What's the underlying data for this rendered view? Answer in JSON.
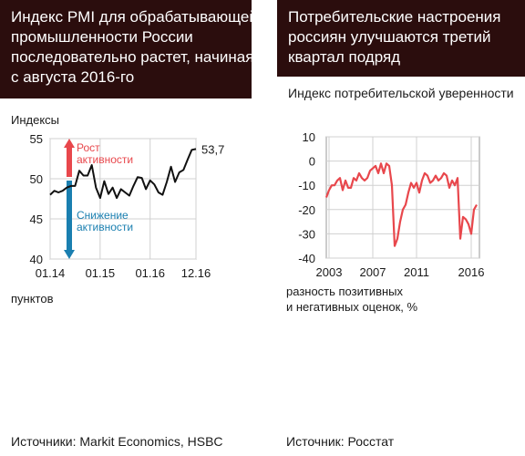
{
  "colors": {
    "header_bg": "#2b0d0d",
    "header_text": "#ffffff",
    "growth_arrow": "#e8474c",
    "decline_arrow": "#1a7fb0",
    "line_left": "#111111",
    "line_right": "#e8474c",
    "grid": "#d0d0d0"
  },
  "left": {
    "title_lines": [
      "Индекс PMI для обрабатывающей",
      "промышленности России",
      "последовательно растет, начиная",
      "с августа 2016-го"
    ],
    "source": "Источники: Markit Economics, HSBC"
  },
  "right": {
    "title_lines": [
      "Потребительские настроения",
      "россиян улучшаются третий",
      "квартал подряд"
    ],
    "source": "Источник: Росстат"
  },
  "chart_data": [
    {
      "type": "line",
      "title": "Индекс PMI для обрабатывающей промышленности России последовательно растет, начиная с августа 2016-го",
      "ylabel": "Индексы",
      "xlabel": "пунктов",
      "ylim": [
        40,
        55
      ],
      "yticks": [
        40,
        45,
        50,
        55
      ],
      "xticks": [
        "01.14",
        "01.15",
        "01.16",
        "12.16"
      ],
      "grid": true,
      "end_label": "53,7",
      "annotations": {
        "up": [
          "Рост",
          "активности"
        ],
        "down": [
          "Снижение",
          "активности"
        ],
        "threshold": 50
      },
      "series": [
        {
          "x": [
            "01.14",
            "02.14",
            "03.14",
            "04.14",
            "05.14",
            "06.14",
            "07.14",
            "08.14",
            "09.14",
            "10.14",
            "11.14",
            "12.14",
            "01.15",
            "02.15",
            "03.15",
            "04.15",
            "05.15",
            "06.15",
            "07.15",
            "08.15",
            "09.15",
            "10.15",
            "11.15",
            "12.15",
            "01.16",
            "02.16",
            "03.16",
            "04.16",
            "05.16",
            "06.16",
            "07.16",
            "08.16",
            "09.16",
            "10.16",
            "11.16",
            "12.16"
          ],
          "values": [
            48.0,
            48.5,
            48.3,
            48.5,
            48.9,
            49.1,
            49.1,
            51.0,
            50.4,
            50.4,
            51.7,
            48.9,
            47.6,
            49.7,
            48.1,
            48.9,
            47.6,
            48.7,
            48.3,
            47.9,
            49.1,
            50.2,
            50.1,
            48.7,
            49.8,
            49.3,
            48.3,
            48.0,
            49.6,
            51.5,
            49.6,
            50.8,
            51.1,
            52.4,
            53.6,
            53.7
          ]
        }
      ]
    },
    {
      "type": "line",
      "title": "Потребительские настроения россиян улучшаются третий квартал подряд",
      "subtitle": "Индекс потребительской уверенности",
      "xlabel": "разность позитивных и негативных оценок, %",
      "ylim": [
        -40,
        10
      ],
      "yticks": [
        10,
        0,
        -10,
        -20,
        -30,
        -40
      ],
      "xticks": [
        2003,
        2007,
        2011,
        2016
      ],
      "grid": true,
      "series": [
        {
          "x": [
            2002.75,
            2003,
            2003.25,
            2003.5,
            2003.75,
            2004,
            2004.25,
            2004.5,
            2004.75,
            2005,
            2005.25,
            2005.5,
            2005.75,
            2006,
            2006.25,
            2006.5,
            2006.75,
            2007,
            2007.25,
            2007.5,
            2007.75,
            2008,
            2008.25,
            2008.5,
            2008.75,
            2009,
            2009.25,
            2009.5,
            2009.75,
            2010,
            2010.25,
            2010.5,
            2010.75,
            2011,
            2011.25,
            2011.5,
            2011.75,
            2012,
            2012.25,
            2012.5,
            2012.75,
            2013,
            2013.25,
            2013.5,
            2013.75,
            2014,
            2014.25,
            2014.5,
            2014.75,
            2015,
            2015.25,
            2015.5,
            2015.75,
            2016,
            2016.25,
            2016.5
          ],
          "values": [
            -15,
            -12,
            -10,
            -10,
            -8,
            -7,
            -12,
            -8,
            -11,
            -11,
            -7,
            -8,
            -5,
            -7,
            -8,
            -7,
            -4,
            -3,
            -2,
            -5,
            -1,
            -5,
            -1,
            -2,
            -10,
            -35,
            -32,
            -25,
            -20,
            -18,
            -13,
            -9,
            -11,
            -9,
            -13,
            -8,
            -5,
            -6,
            -9,
            -8,
            -6,
            -8,
            -7,
            -5,
            -6,
            -11,
            -8,
            -10,
            -7,
            -32,
            -23,
            -24,
            -26,
            -30,
            -20,
            -18
          ]
        }
      ]
    }
  ]
}
